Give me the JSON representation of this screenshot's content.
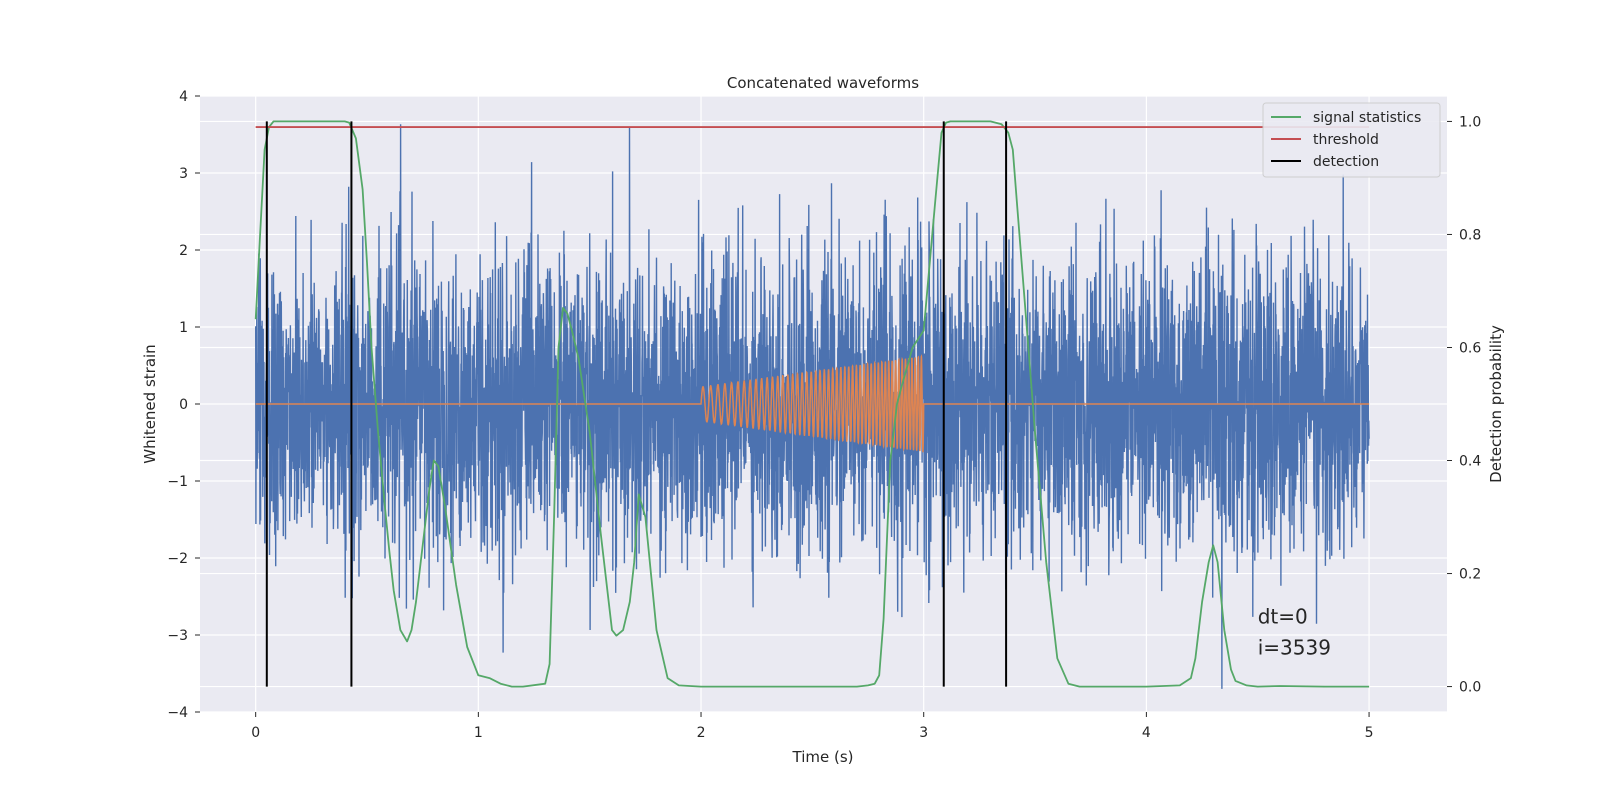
{
  "chart_data": {
    "type": "line",
    "title": "Concatenated waveforms",
    "xlabel": "Time (s)",
    "ylabel": "Whitened strain",
    "ylabel_right": "Detection probability",
    "xlim": [
      -0.25,
      5.35
    ],
    "ylim": [
      -4.0,
      4.0
    ],
    "ylim_right": [
      -0.045,
      1.045
    ],
    "x_ticks": [
      0,
      1,
      2,
      3,
      4,
      5
    ],
    "y_ticks": [
      -4,
      -3,
      -2,
      -1,
      0,
      1,
      2,
      3,
      4
    ],
    "y_ticks_right": [
      0.0,
      0.2,
      0.4,
      0.6,
      0.8,
      1.0
    ],
    "x_tick_labels": [
      "0",
      "1",
      "2",
      "3",
      "4",
      "5"
    ],
    "y_tick_labels": [
      "−4",
      "−3",
      "−2",
      "−1",
      "0",
      "1",
      "2",
      "3",
      "4"
    ],
    "y_tick_labels_right": [
      "0.0",
      "0.2",
      "0.4",
      "0.6",
      "0.8",
      "1.0"
    ],
    "grid": true,
    "legend_position": "top-right",
    "legend": [
      {
        "label": "signal statistics",
        "color": "#55a868"
      },
      {
        "label": "threshold",
        "color": "#c44e52"
      },
      {
        "label": "detection",
        "color": "#000000"
      }
    ],
    "series": [
      {
        "name": "",
        "role": "whitened-noise",
        "axis": "left",
        "color": "#4c72b0",
        "x_range": [
          0,
          5
        ],
        "y_range": [
          -3.7,
          3.7
        ]
      },
      {
        "name": "",
        "role": "injected-chirp",
        "axis": "left",
        "color": "#dd8452",
        "x_range": [
          2,
          3
        ],
        "amplitude_start": 0.22,
        "amplitude_end": 0.62
      },
      {
        "name": "signal statistics",
        "axis": "right",
        "color": "#55a868",
        "x": [
          0,
          0.02,
          0.04,
          0.06,
          0.08,
          0.1,
          0.2,
          0.3,
          0.4,
          0.42,
          0.45,
          0.48,
          0.5,
          0.52,
          0.55,
          0.58,
          0.6,
          0.62,
          0.65,
          0.68,
          0.7,
          0.72,
          0.75,
          0.78,
          0.8,
          0.82,
          0.85,
          0.9,
          0.95,
          1.0,
          1.05,
          1.1,
          1.15,
          1.2,
          1.3,
          1.32,
          1.34,
          1.36,
          1.38,
          1.4,
          1.42,
          1.45,
          1.5,
          1.55,
          1.6,
          1.62,
          1.65,
          1.68,
          1.7,
          1.72,
          1.75,
          1.8,
          1.85,
          1.9,
          2.0,
          2.5,
          2.7,
          2.75,
          2.78,
          2.8,
          2.82,
          2.85,
          2.88,
          2.9,
          2.95,
          3.0,
          3.05,
          3.08,
          3.1,
          3.12,
          3.15,
          3.2,
          3.3,
          3.35,
          3.38,
          3.4,
          3.42,
          3.45,
          3.5,
          3.55,
          3.6,
          3.65,
          3.7,
          4.0,
          4.15,
          4.2,
          4.22,
          4.25,
          4.28,
          4.3,
          4.32,
          4.35,
          4.38,
          4.4,
          4.45,
          4.5,
          4.6,
          4.8,
          5.0
        ],
        "y": [
          0.65,
          0.8,
          0.95,
          0.99,
          1.0,
          1.0,
          1.0,
          1.0,
          1.0,
          0.998,
          0.97,
          0.88,
          0.75,
          0.6,
          0.45,
          0.32,
          0.24,
          0.17,
          0.1,
          0.08,
          0.1,
          0.15,
          0.25,
          0.35,
          0.4,
          0.39,
          0.32,
          0.18,
          0.07,
          0.02,
          0.015,
          0.005,
          0.0,
          0.0,
          0.005,
          0.04,
          0.3,
          0.6,
          0.67,
          0.66,
          0.63,
          0.58,
          0.45,
          0.27,
          0.1,
          0.09,
          0.1,
          0.15,
          0.22,
          0.34,
          0.3,
          0.1,
          0.015,
          0.002,
          0.0,
          0.0,
          0.0,
          0.002,
          0.005,
          0.02,
          0.12,
          0.4,
          0.5,
          0.53,
          0.6,
          0.63,
          0.85,
          0.98,
          0.998,
          1.0,
          1.0,
          1.0,
          1.0,
          0.995,
          0.98,
          0.95,
          0.85,
          0.7,
          0.45,
          0.22,
          0.05,
          0.005,
          0.0,
          0.0,
          0.002,
          0.015,
          0.05,
          0.15,
          0.22,
          0.25,
          0.22,
          0.1,
          0.03,
          0.01,
          0.002,
          0.0,
          0.001,
          0.0,
          0.0
        ]
      },
      {
        "name": "threshold",
        "axis": "right",
        "color": "#c44e52",
        "x": [
          0,
          5
        ],
        "y": [
          0.99,
          0.99
        ]
      }
    ],
    "detections": [
      0.05,
      0.43,
      3.09,
      3.37
    ],
    "detection_range_right": [
      0.0,
      1.0
    ],
    "annotations": [
      {
        "text": "dt=0",
        "x": 4.5,
        "y": -2.85
      },
      {
        "text": "i=3539",
        "x": 4.5,
        "y": -3.25
      }
    ],
    "colors": {
      "background": "#eaeaf2",
      "grid": "#ffffff"
    }
  }
}
